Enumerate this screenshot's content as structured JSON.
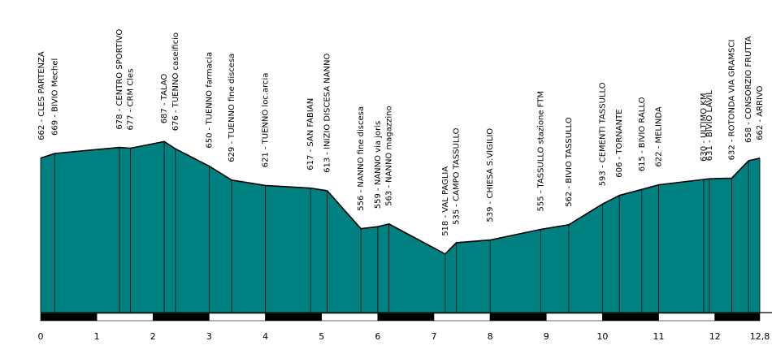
{
  "chart_data": {
    "type": "area",
    "xlim": [
      0,
      12.8
    ],
    "ylim": [
      430,
      750
    ],
    "fill_color": "#008080",
    "stroke_color": "#000000",
    "x_ticks": [
      {
        "value": 0,
        "label": "0"
      },
      {
        "value": 1,
        "label": "1"
      },
      {
        "value": 2,
        "label": "2"
      },
      {
        "value": 3,
        "label": "3"
      },
      {
        "value": 4,
        "label": "4"
      },
      {
        "value": 5,
        "label": "5"
      },
      {
        "value": 6,
        "label": "6"
      },
      {
        "value": 7,
        "label": "7"
      },
      {
        "value": 8,
        "label": "8"
      },
      {
        "value": 9,
        "label": "9"
      },
      {
        "value": 10,
        "label": "10"
      },
      {
        "value": 11,
        "label": "11"
      },
      {
        "value": 12,
        "label": "12"
      },
      {
        "value": 12.8,
        "label": "12,8"
      }
    ],
    "points": [
      {
        "x": 0.0,
        "elevation": 662,
        "label": "662 - CLES PARTENZA"
      },
      {
        "x": 0.25,
        "elevation": 669,
        "label": "669 - BIVIO Mechel"
      },
      {
        "x": 1.4,
        "elevation": 678,
        "label": "678 - CENTRO SPORTIVO"
      },
      {
        "x": 1.6,
        "elevation": 677,
        "label": "677 - CRM Cles"
      },
      {
        "x": 2.2,
        "elevation": 687,
        "label": "687 - TALAO"
      },
      {
        "x": 2.4,
        "elevation": 676,
        "label": "676 - TUENNO caseificio"
      },
      {
        "x": 3.0,
        "elevation": 650,
        "label": "650 - TUENNO farmacia"
      },
      {
        "x": 3.4,
        "elevation": 629,
        "label": "629 - TUENNO fine discesa"
      },
      {
        "x": 4.0,
        "elevation": 621,
        "label": "621 - TUENNO loc.arcia"
      },
      {
        "x": 4.8,
        "elevation": 617,
        "label": "617 - SAN FABIAN"
      },
      {
        "x": 5.1,
        "elevation": 613,
        "label": "613 - INIZIO DISCESA NANNO"
      },
      {
        "x": 5.7,
        "elevation": 556,
        "label": "556 - NANNO fine discesa"
      },
      {
        "x": 6.0,
        "elevation": 559,
        "label": "559 - NANNO via joris"
      },
      {
        "x": 6.2,
        "elevation": 563,
        "label": "563 - NANNO magazzino"
      },
      {
        "x": 7.2,
        "elevation": 518,
        "label": "518 - VAL PAGLIA"
      },
      {
        "x": 7.4,
        "elevation": 535,
        "label": "535 - CAMPO TASSULLO"
      },
      {
        "x": 8.0,
        "elevation": 539,
        "label": "539 - CHIESA S.VIGILIO"
      },
      {
        "x": 8.9,
        "elevation": 555,
        "label": "555 - TASSULLO stazione FTM"
      },
      {
        "x": 9.4,
        "elevation": 562,
        "label": "562 - BIVIO TASSULLO"
      },
      {
        "x": 10.0,
        "elevation": 593,
        "label": "593 - CEMENTI TASSULLO"
      },
      {
        "x": 10.3,
        "elevation": 606,
        "label": "606 - TORNANTE"
      },
      {
        "x": 10.7,
        "elevation": 615,
        "label": "615 - BIVIO RALLO"
      },
      {
        "x": 11.0,
        "elevation": 622,
        "label": "622 - MELINDA"
      },
      {
        "x": 11.8,
        "elevation": 630,
        "label": "630 - ULTIMO KM"
      },
      {
        "x": 11.9,
        "elevation": 631,
        "label": "631 - BIVIO LAVIL"
      },
      {
        "x": 12.3,
        "elevation": 632,
        "label": "632 - ROTONDA VIA GRAMSCI"
      },
      {
        "x": 12.6,
        "elevation": 658,
        "label": "658 - CONSORZIO FRUTTA"
      },
      {
        "x": 12.8,
        "elevation": 662,
        "label": "662 - ARRIVO"
      }
    ]
  }
}
